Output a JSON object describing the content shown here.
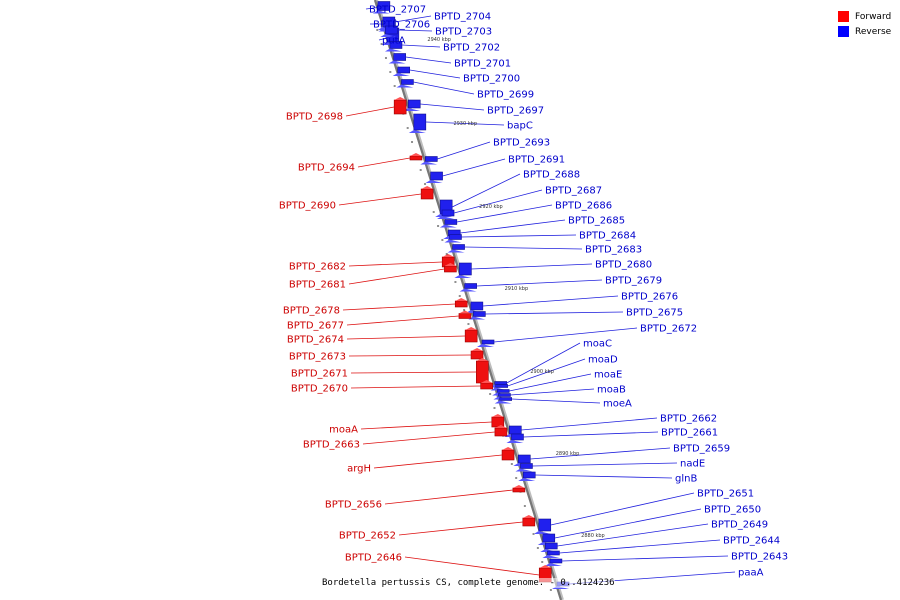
{
  "legend": {
    "forward_label": "Forward",
    "reverse_label": "Reverse",
    "forward_color": "#ff0000",
    "reverse_color": "#0000ff"
  },
  "caption": "Bordetella pertussis CS, complete genome. - 0..4124236",
  "scale_ticks": [
    "2940 kbp",
    "2930 kbp",
    "2920 kbp",
    "2910 kbp",
    "2900 kbp",
    "2890 kbp",
    "2880 kbp"
  ],
  "genes_reverse": [
    "BPTD_2707",
    "BPTD_2706",
    "putA",
    "BPTD_2704",
    "BPTD_2703",
    "BPTD_2702",
    "BPTD_2701",
    "BPTD_2700",
    "BPTD_2699",
    "BPTD_2697",
    "bapC",
    "BPTD_2693",
    "BPTD_2691",
    "BPTD_2688",
    "BPTD_2687",
    "BPTD_2686",
    "BPTD_2685",
    "BPTD_2684",
    "BPTD_2683",
    "BPTD_2680",
    "BPTD_2679",
    "BPTD_2676",
    "BPTD_2675",
    "BPTD_2672",
    "moaC",
    "moaD",
    "moaE",
    "moaB",
    "moeA",
    "BPTD_2662",
    "BPTD_2661",
    "BPTD_2659",
    "nadE",
    "glnB",
    "BPTD_2651",
    "BPTD_2650",
    "BPTD_2649",
    "BPTD_2644",
    "BPTD_2643",
    "paaA"
  ],
  "genes_forward": [
    "BPTD_2698",
    "BPTD_2694",
    "BPTD_2690",
    "BPTD_2682",
    "BPTD_2681",
    "BPTD_2678",
    "BPTD_2677",
    "BPTD_2674",
    "BPTD_2673",
    "BPTD_2671",
    "BPTD_2670",
    "moaA",
    "BPTD_2663",
    "argH",
    "BPTD_2656",
    "BPTD_2652",
    "BPTD_2646"
  ]
}
